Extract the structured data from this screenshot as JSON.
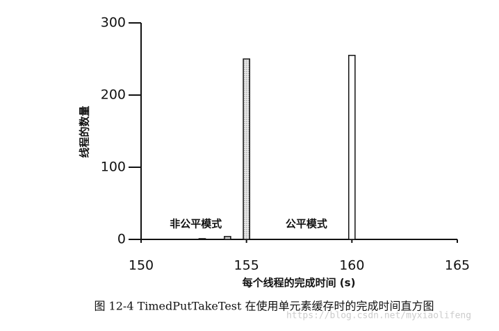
{
  "chart_data": {
    "type": "histogram",
    "title": "图 12-4   TimedPutTakeTest 在使用单元素缓存时的完成时间直方图",
    "x_label": "每个线程的完成时间 (s)",
    "y_label": "线程的数量",
    "watermark": "https://blog.csdn.net/myxiaolifeng",
    "xlim": [
      150,
      165
    ],
    "xticks": [
      150,
      155,
      160,
      165
    ],
    "ylim": [
      0,
      300
    ],
    "yticks": [
      0,
      100,
      200,
      300
    ],
    "series": [
      {
        "name": "非公平模式",
        "color": "#d8d8d8",
        "bins": [
          152.75,
          153.05,
          153.35,
          153.65,
          153.95,
          154.25,
          154.55,
          154.85,
          155.15
        ],
        "values": [
          1,
          0,
          0,
          0,
          4,
          0,
          0,
          250
        ]
      },
      {
        "name": "公平模式",
        "color": "#ffffff",
        "bins": [
          159.85,
          160.15
        ],
        "values": [
          255
        ]
      }
    ]
  }
}
